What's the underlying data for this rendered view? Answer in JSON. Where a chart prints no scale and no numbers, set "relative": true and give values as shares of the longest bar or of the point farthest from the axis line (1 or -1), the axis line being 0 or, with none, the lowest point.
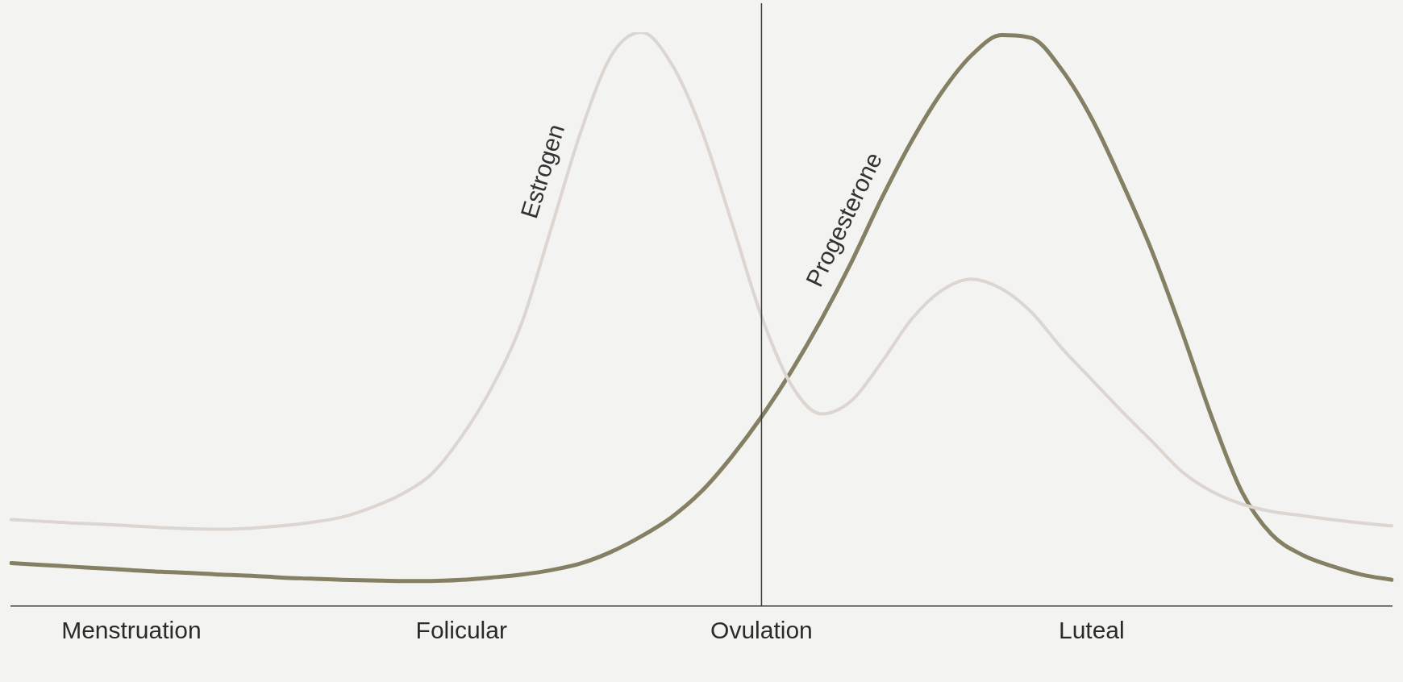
{
  "chart_data": {
    "type": "line",
    "relative": true,
    "grid": false,
    "legend": false,
    "marker": "none",
    "line_style": "solid",
    "categories": [
      null,
      null,
      null,
      null,
      "Menstruation",
      null,
      null,
      null,
      null,
      null,
      null,
      null,
      null,
      null,
      null,
      "Folicular",
      null,
      null,
      null,
      null,
      null,
      null,
      null,
      null,
      null,
      "Ovulation",
      null,
      null,
      null,
      null,
      null,
      null,
      null,
      null,
      null,
      null,
      "Luteal",
      null,
      null,
      null,
      null,
      null,
      null,
      null,
      null,
      null,
      null
    ],
    "ref_lines": [
      {
        "axis": "x",
        "value": "Ovulation",
        "label": null,
        "color": "#3a3a36"
      }
    ],
    "series": [
      {
        "name": "Estrogen",
        "color": "#ddd5cf",
        "values": [
          0.151,
          0.148,
          0.145,
          0.143,
          0.14,
          0.137,
          0.135,
          0.134,
          0.136,
          0.14,
          0.146,
          0.155,
          0.172,
          0.195,
          0.23,
          0.295,
          0.38,
          0.492,
          0.66,
          0.83,
          0.96,
          1,
          0.945,
          0.83,
          0.67,
          0.505,
          0.385,
          0.335,
          0.358,
          0.425,
          0.5,
          0.55,
          0.57,
          0.553,
          0.512,
          0.45,
          0.395,
          0.34,
          0.288,
          0.235,
          0.2,
          0.178,
          0.165,
          0.158,
          0.151,
          0.145,
          0.14
        ]
      },
      {
        "name": "Progesterone",
        "color": "#857f63",
        "values": [
          0.075,
          0.072,
          0.069,
          0.066,
          0.063,
          0.06,
          0.058,
          0.055,
          0.053,
          0.05,
          0.048,
          0.046,
          0.045,
          0.044,
          0.044,
          0.046,
          0.05,
          0.055,
          0.063,
          0.075,
          0.095,
          0.122,
          0.155,
          0.2,
          0.26,
          0.33,
          0.41,
          0.5,
          0.6,
          0.71,
          0.81,
          0.895,
          0.96,
          0.995,
          0.99,
          0.935,
          0.85,
          0.74,
          0.62,
          0.48,
          0.33,
          0.2,
          0.125,
          0.09,
          0.07,
          0.055,
          0.046
        ]
      }
    ]
  }
}
